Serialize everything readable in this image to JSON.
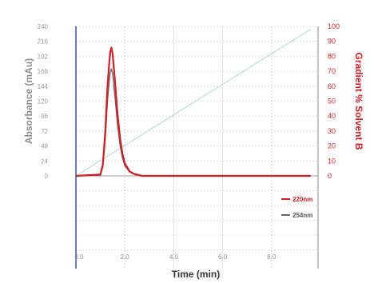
{
  "chart_data": {
    "type": "line",
    "title": "",
    "xlabel": "Time (min)",
    "ylabel": "Absorbance (mAu)",
    "y2label": "Gradient % Solvent B",
    "xlim": [
      0,
      10
    ],
    "ylim": [
      0,
      240
    ],
    "y2lim": [
      0,
      100
    ],
    "x_ticks": [
      "0.0",
      "2.0",
      "4.0",
      "6.0",
      "8.0"
    ],
    "x_tick_values": [
      0,
      2,
      4,
      6,
      8
    ],
    "y_ticks": [
      0,
      24,
      48,
      72,
      96,
      120,
      144,
      168,
      192,
      216,
      240
    ],
    "y2_ticks": [
      0,
      10,
      20,
      30,
      40,
      50,
      60,
      70,
      80,
      90,
      100
    ],
    "grid": true,
    "legend_position": "bottom-right",
    "peak": {
      "x": 1.45,
      "y_220nm": 206,
      "y_254nm": 172
    },
    "series": [
      {
        "name": "220nm",
        "color": "#d21f24",
        "axis": "left",
        "x": [
          0,
          1.0,
          1.1,
          1.2,
          1.3,
          1.4,
          1.45,
          1.5,
          1.6,
          1.7,
          1.8,
          1.9,
          2.0,
          2.2,
          2.4,
          2.7,
          9.6
        ],
        "values": [
          0,
          2,
          18,
          70,
          150,
          198,
          206,
          196,
          150,
          100,
          62,
          36,
          20,
          7,
          3,
          0,
          0
        ]
      },
      {
        "name": "254nm",
        "color": "#666666",
        "axis": "left",
        "x": [
          0,
          1.0,
          1.1,
          1.2,
          1.3,
          1.4,
          1.45,
          1.5,
          1.6,
          1.7,
          1.8,
          1.9,
          2.0,
          2.2,
          2.4,
          2.7,
          9.6
        ],
        "values": [
          0,
          1,
          14,
          58,
          125,
          165,
          172,
          164,
          124,
          82,
          50,
          29,
          16,
          6,
          2,
          0,
          0
        ]
      },
      {
        "name": "",
        "color": "#a6dcc2",
        "axis": "right",
        "x": [
          0,
          9.6
        ],
        "values": [
          0,
          98
        ]
      }
    ]
  }
}
